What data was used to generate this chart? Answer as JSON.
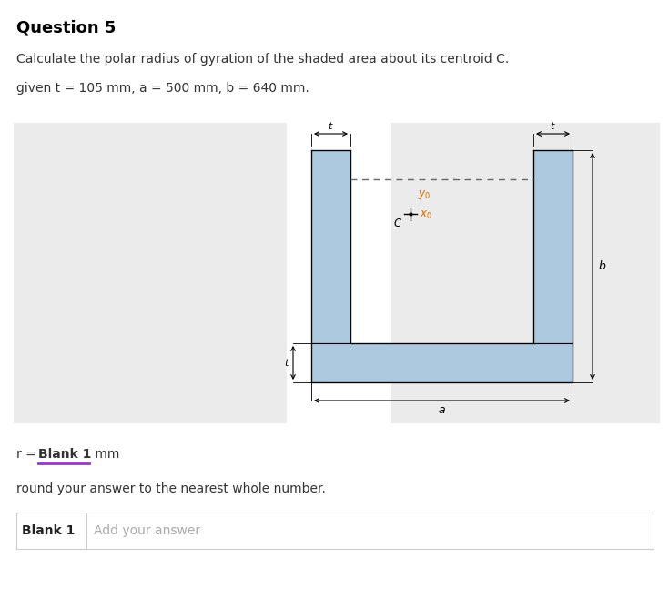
{
  "title": "Question 5",
  "line1": "Calculate the polar radius of gyration of the shaded area about its centroid C.",
  "line2": "given t = 105 mm, a = 500 mm, b = 640 mm.",
  "round_text": "round your answer to the nearest whole number.",
  "blank1_prompt": "Add your answer",
  "shape_fill": "#adc9df",
  "shape_edge": "#000000",
  "dashed_color": "#666666",
  "fig_bg": "#ffffff",
  "gray_bg": "#ebebeb",
  "underline_color": "#9933cc",
  "text_color": "#333333"
}
